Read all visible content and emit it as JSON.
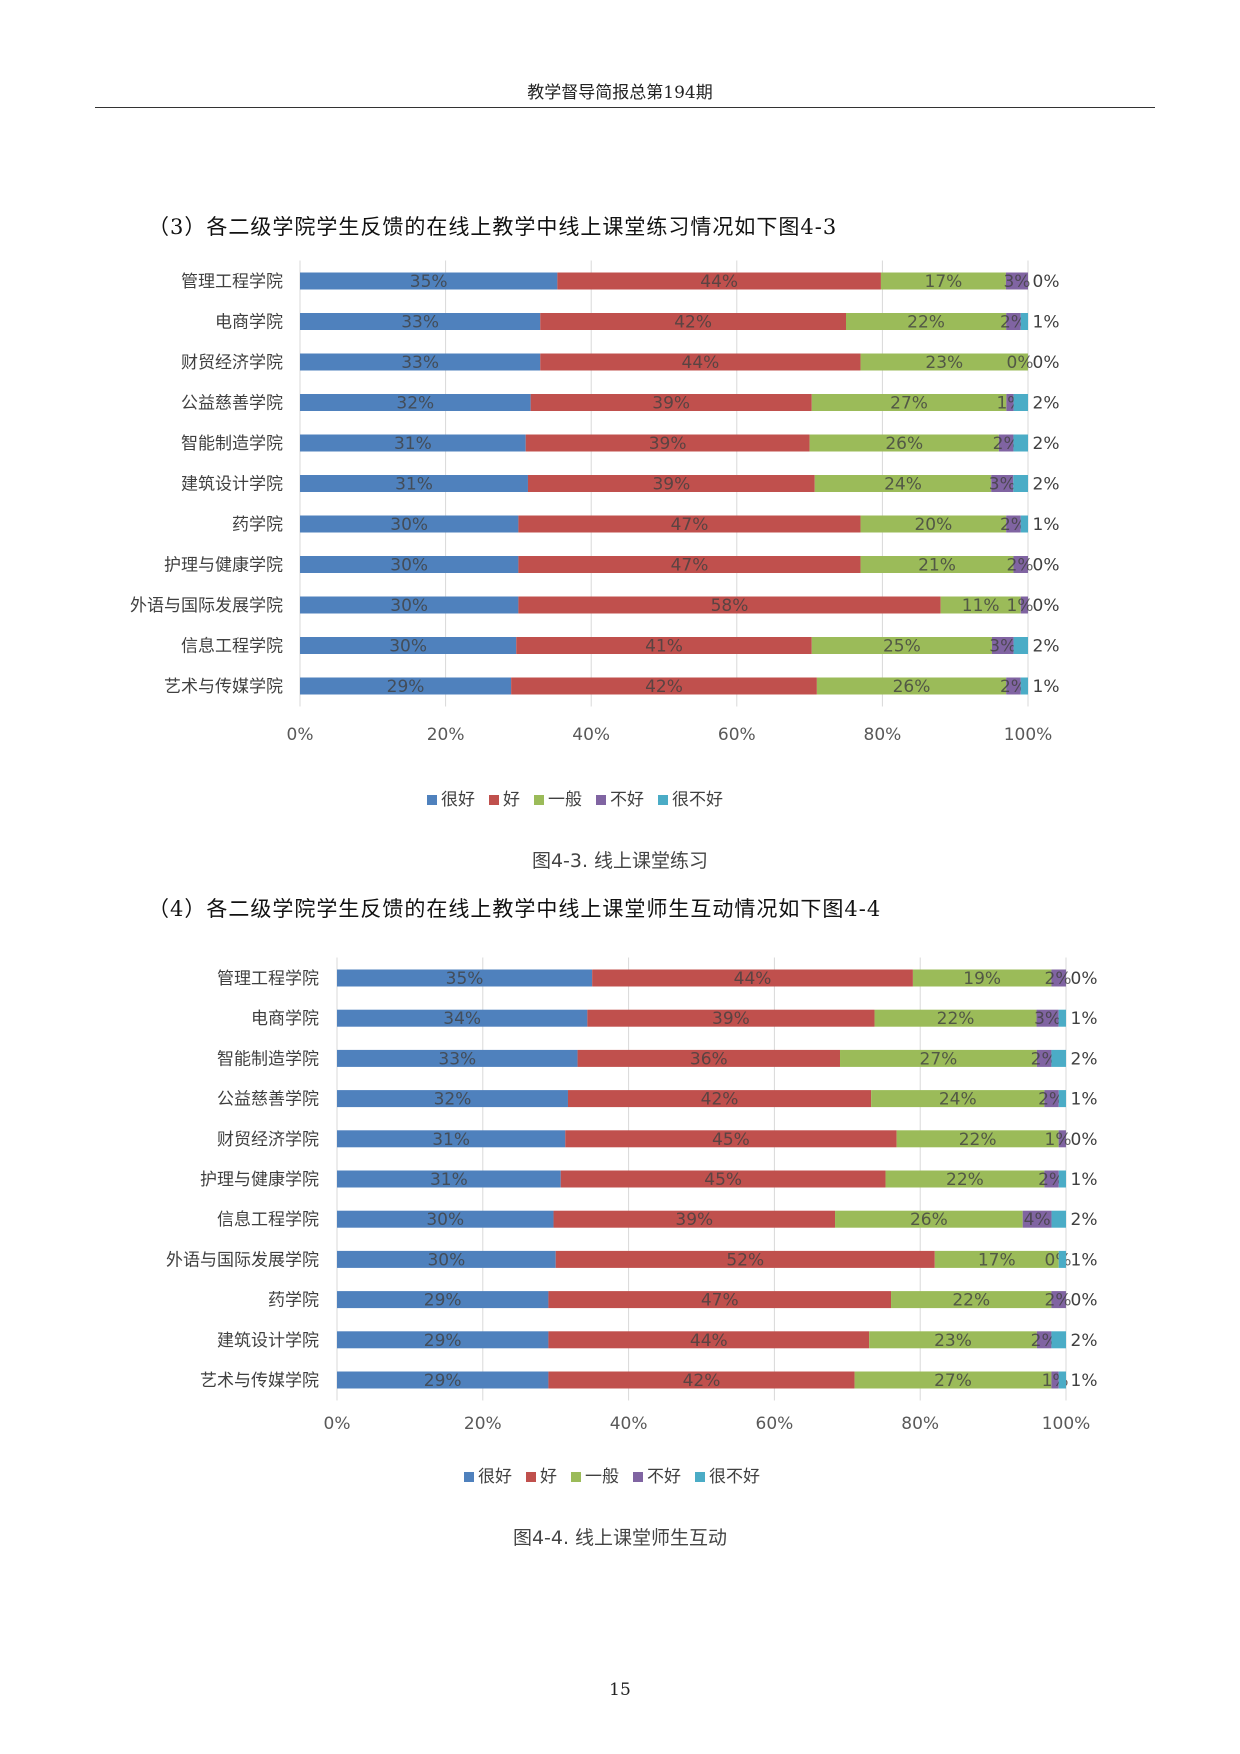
{
  "page": {
    "header": "教学督导简报总第194期",
    "page_number": "15"
  },
  "sections": [
    {
      "heading": "（3）各二级学院学生反馈的在线上教学中线上课堂练习情况如下图4-3",
      "caption": "图4-3. 线上课堂练习"
    },
    {
      "heading": "（4）各二级学院学生反馈的在线上教学中线上课堂师生互动情况如下图4-4",
      "caption": "图4-4. 线上课堂师生互动"
    }
  ],
  "chart_data": [
    {
      "type": "bar",
      "orientation": "horizontal",
      "stacked": "100%",
      "title": "",
      "xlabel": "",
      "ylabel": "",
      "xlim": [
        0,
        100
      ],
      "x_ticks": [
        "0%",
        "20%",
        "40%",
        "60%",
        "80%",
        "100%"
      ],
      "grid": true,
      "legend_position": "bottom",
      "categories": [
        "管理工程学院",
        "电商学院",
        "财贸经济学院",
        "公益慈善学院",
        "智能制造学院",
        "建筑设计学院",
        "药学院",
        "护理与健康学院",
        "外语与国际发展学院",
        "信息工程学院",
        "艺术与传媒学院"
      ],
      "series": [
        {
          "name": "很好",
          "color": "#4f81bd",
          "values": [
            35,
            33,
            33,
            32,
            31,
            31,
            30,
            30,
            30,
            30,
            29
          ]
        },
        {
          "name": "好",
          "color": "#c0504d",
          "values": [
            44,
            42,
            44,
            39,
            39,
            39,
            47,
            47,
            58,
            41,
            42
          ]
        },
        {
          "name": "一般",
          "color": "#9bbb59",
          "values": [
            17,
            22,
            23,
            27,
            26,
            24,
            20,
            21,
            11,
            25,
            26
          ]
        },
        {
          "name": "不好",
          "color": "#8064a2",
          "values": [
            3,
            2,
            0,
            1,
            2,
            3,
            2,
            2,
            1,
            3,
            2
          ]
        },
        {
          "name": "很不好",
          "color": "#4bacc6",
          "values": [
            0,
            1,
            0,
            2,
            2,
            2,
            1,
            0,
            0,
            2,
            1
          ]
        }
      ]
    },
    {
      "type": "bar",
      "orientation": "horizontal",
      "stacked": "100%",
      "title": "",
      "xlabel": "",
      "ylabel": "",
      "xlim": [
        0,
        100
      ],
      "x_ticks": [
        "0%",
        "20%",
        "40%",
        "60%",
        "80%",
        "100%"
      ],
      "grid": true,
      "legend_position": "bottom",
      "categories": [
        "管理工程学院",
        "电商学院",
        "智能制造学院",
        "公益慈善学院",
        "财贸经济学院",
        "护理与健康学院",
        "信息工程学院",
        "外语与国际发展学院",
        "药学院",
        "建筑设计学院",
        "艺术与传媒学院"
      ],
      "series": [
        {
          "name": "很好",
          "color": "#4f81bd",
          "values": [
            35,
            34,
            33,
            32,
            31,
            31,
            30,
            30,
            29,
            29,
            29
          ]
        },
        {
          "name": "好",
          "color": "#c0504d",
          "values": [
            44,
            39,
            36,
            42,
            45,
            45,
            39,
            52,
            47,
            44,
            42
          ]
        },
        {
          "name": "一般",
          "color": "#9bbb59",
          "values": [
            19,
            22,
            27,
            24,
            22,
            22,
            26,
            17,
            22,
            23,
            27
          ]
        },
        {
          "name": "不好",
          "color": "#8064a2",
          "values": [
            2,
            3,
            2,
            2,
            1,
            2,
            4,
            0,
            2,
            2,
            1
          ]
        },
        {
          "name": "很不好",
          "color": "#4bacc6",
          "values": [
            0,
            1,
            2,
            1,
            0,
            1,
            2,
            1,
            0,
            2,
            1
          ]
        }
      ]
    }
  ]
}
